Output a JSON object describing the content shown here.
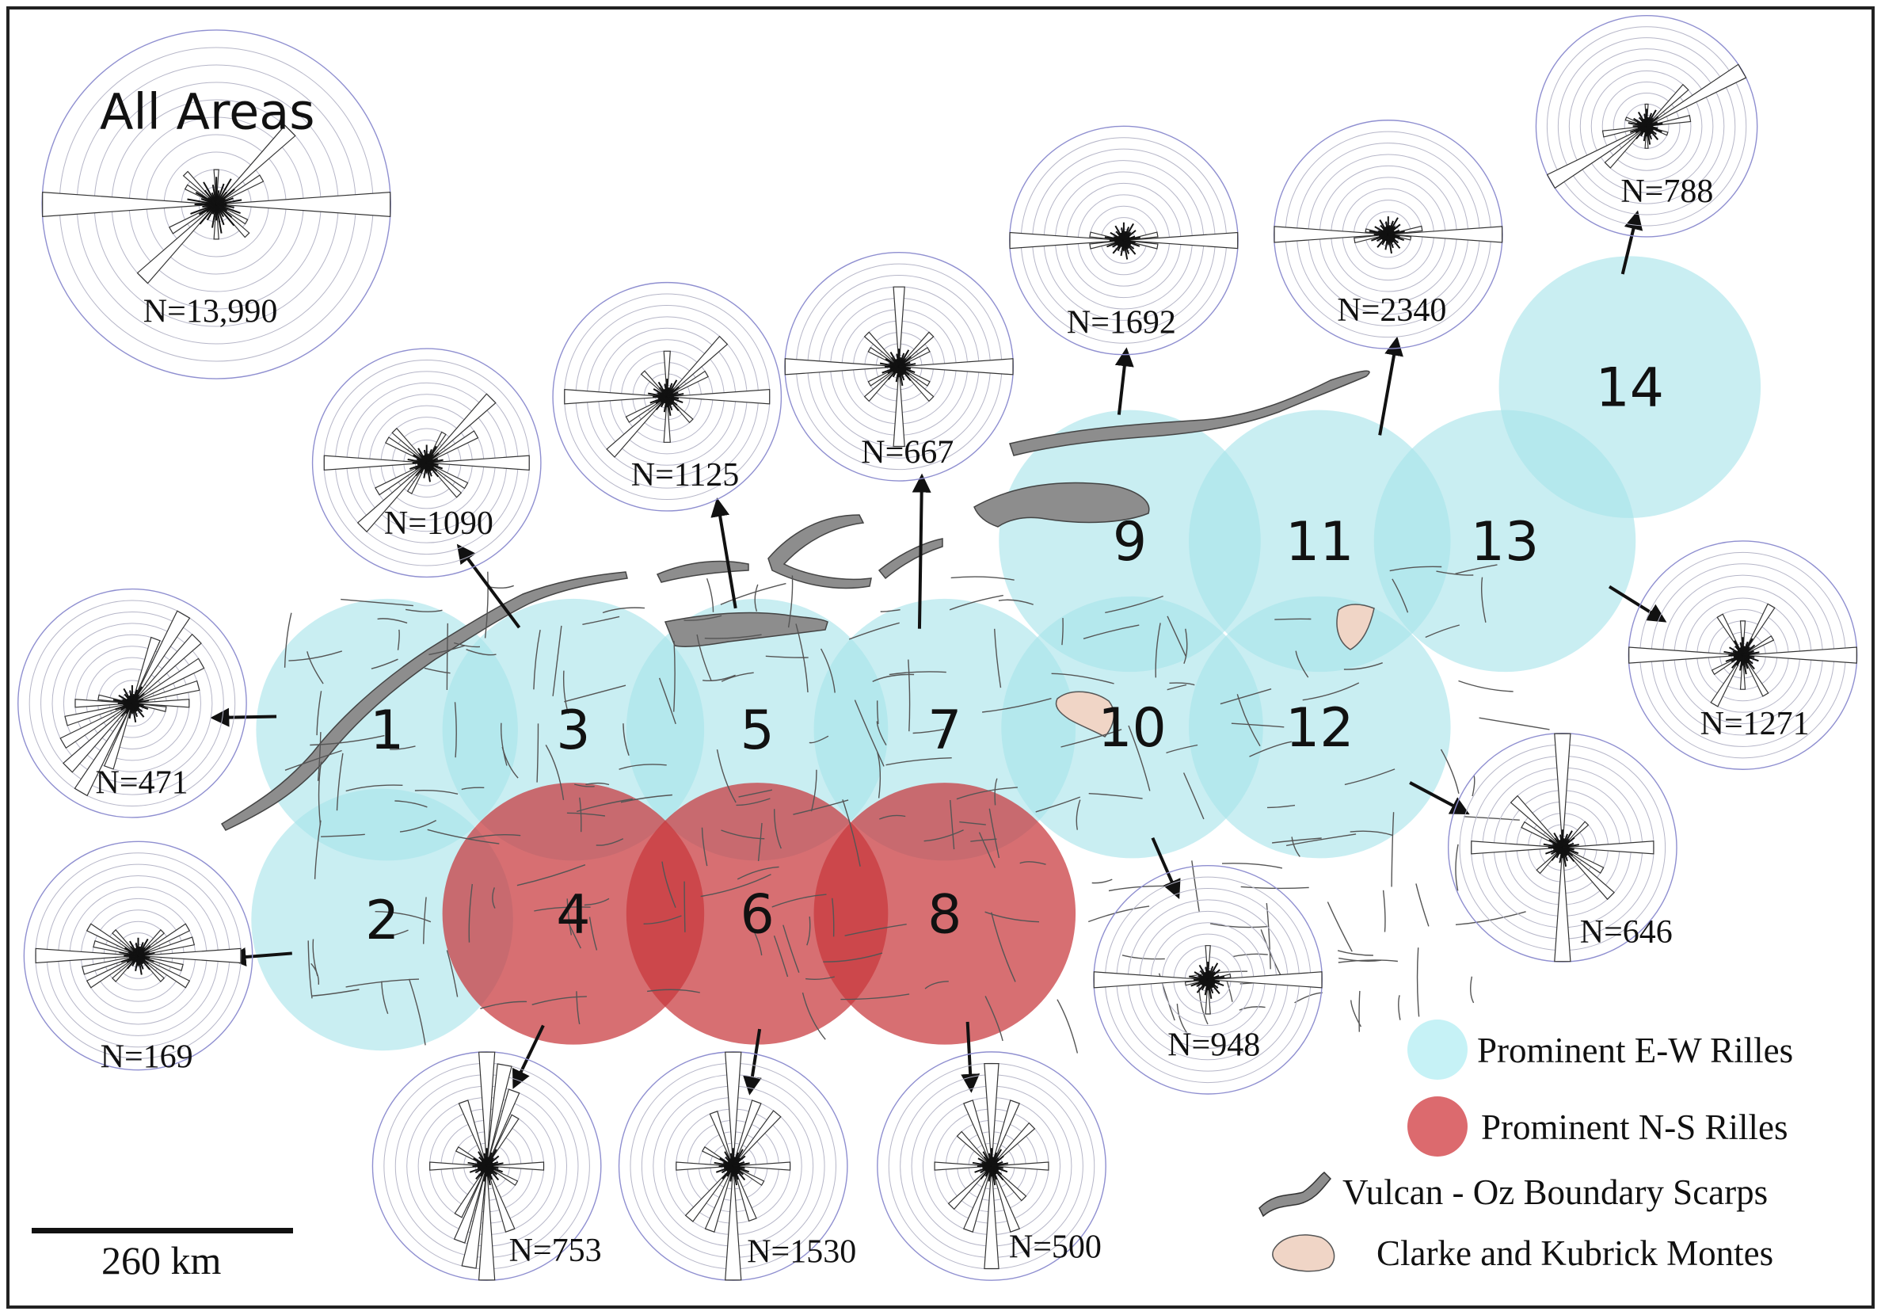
{
  "colors": {
    "ew_fill": "#a8e4ea",
    "ns_fill": "#c8383c",
    "scarp_fill": "#8d8d8d",
    "montes_fill": "#f0d5c6",
    "rose_ring": "#b6b6c8",
    "rose_outer": "#8f8fd0",
    "frame": "#222222"
  },
  "rose_all": {
    "title": "All Areas",
    "n_label": "N=13,990"
  },
  "areas": [
    {
      "id": "1",
      "label": "1",
      "type": "ew",
      "n_label": "N=471"
    },
    {
      "id": "2",
      "label": "2",
      "type": "ew",
      "n_label": "N=169"
    },
    {
      "id": "3",
      "label": "3",
      "type": "ew",
      "n_label": "N=1090"
    },
    {
      "id": "4",
      "label": "4",
      "type": "ns",
      "n_label": "N=753"
    },
    {
      "id": "5",
      "label": "5",
      "type": "ew",
      "n_label": "N=1125"
    },
    {
      "id": "6",
      "label": "6",
      "type": "ns",
      "n_label": "N=1530"
    },
    {
      "id": "7",
      "label": "7",
      "type": "ew",
      "n_label": "N=667"
    },
    {
      "id": "8",
      "label": "8",
      "type": "ns",
      "n_label": "N=500"
    },
    {
      "id": "9",
      "label": "9",
      "type": "ew",
      "n_label": "N=1692"
    },
    {
      "id": "10",
      "label": "10",
      "type": "ew",
      "n_label": "N=948"
    },
    {
      "id": "11",
      "label": "11",
      "type": "ew",
      "n_label": "N=2340"
    },
    {
      "id": "12",
      "label": "12",
      "type": "ew",
      "n_label": "N=646"
    },
    {
      "id": "13",
      "label": "13",
      "type": "ew",
      "n_label": "N=1271"
    },
    {
      "id": "14",
      "label": "14",
      "type": "ew",
      "n_label": "N=788"
    }
  ],
  "legend": {
    "ew": "Prominent E-W Rilles",
    "ns": "Prominent N-S Rilles",
    "scarps": "Vulcan - Oz Boundary Scarps",
    "montes": "Clarke and Kubrick Montes"
  },
  "scale_bar": {
    "label": "260 km"
  }
}
